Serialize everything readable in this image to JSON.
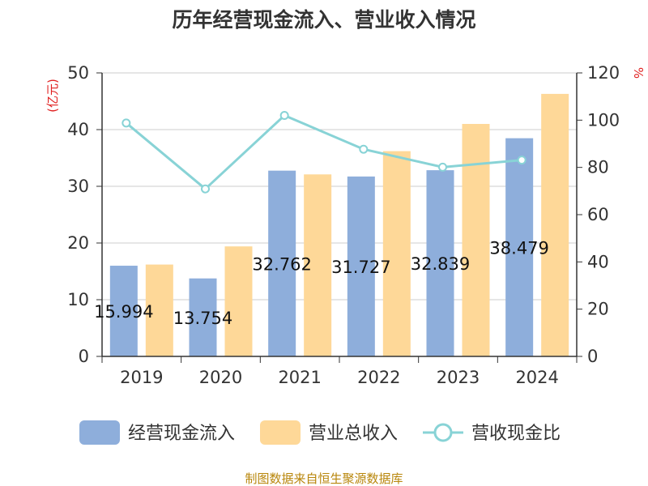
{
  "chart_data": {
    "type": "bar",
    "title": "历年经营现金流入、营业收入情况",
    "categories": [
      "2019",
      "2020",
      "2021",
      "2022",
      "2023",
      "2024"
    ],
    "y_left": {
      "unit": "(亿元)",
      "ylim": [
        0,
        50
      ],
      "ticks": [
        "0",
        "10",
        "20",
        "30",
        "40",
        "50"
      ]
    },
    "y_right": {
      "unit": "%",
      "ylim": [
        0,
        120
      ],
      "ticks": [
        "0",
        "20",
        "40",
        "60",
        "80",
        "100",
        "120"
      ]
    },
    "series": [
      {
        "name": "经营现金流入",
        "type": "bar",
        "axis": "left",
        "color": "#8eaedb",
        "values": [
          15.994,
          13.754,
          32.762,
          31.727,
          32.839,
          38.479
        ],
        "labels": [
          "15.994",
          "13.754",
          "32.762",
          "31.727",
          "32.839",
          "38.479"
        ]
      },
      {
        "name": "营业总收入",
        "type": "bar",
        "axis": "left",
        "color": "#fed898",
        "values": [
          16.2,
          19.4,
          32.1,
          36.2,
          41.0,
          46.3
        ]
      },
      {
        "name": "营收现金比",
        "type": "line",
        "axis": "right",
        "color": "#88d3d6",
        "values": [
          98.8,
          70.9,
          102.0,
          87.7,
          80.1,
          83.1
        ]
      }
    ],
    "grid": true,
    "legend_position": "bottom"
  },
  "footer": {
    "source": "制图数据来自恒生聚源数据库"
  }
}
